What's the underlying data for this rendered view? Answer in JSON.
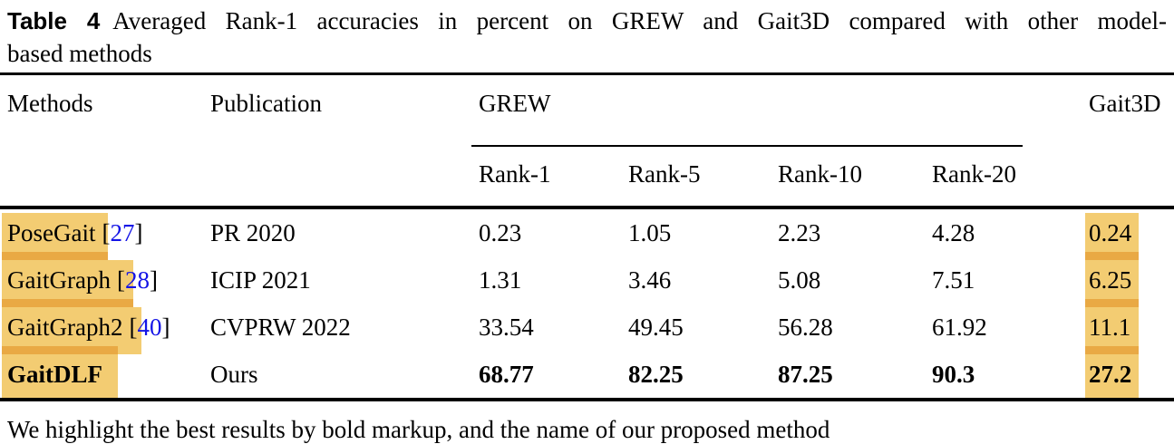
{
  "caption": {
    "label": "Table 4",
    "line1": "Averaged Rank-1 accuracies in percent on GREW and Gait3D compared with other model-",
    "line2": "based methods"
  },
  "table": {
    "headers": {
      "methods": "Methods",
      "publication": "Publication",
      "grew": "GREW",
      "gait3d": "Gait3D",
      "subcols": [
        "Rank-1",
        "Rank-5",
        "Rank-10",
        "Rank-20"
      ]
    },
    "rows": [
      {
        "method": "PoseGait",
        "cite_open": "[",
        "cite_num": "27",
        "cite_close": "]",
        "publication": "PR 2020",
        "rank1": "0.23",
        "rank5": "1.05",
        "rank10": "2.23",
        "rank20": "4.28",
        "gait3d": "0.24"
      },
      {
        "method": "GaitGraph",
        "cite_open": "[",
        "cite_num": "28",
        "cite_close": "]",
        "publication": "ICIP 2021",
        "rank1": "1.31",
        "rank5": "3.46",
        "rank10": "5.08",
        "rank20": "7.51",
        "gait3d": "6.25"
      },
      {
        "method": "GaitGraph2",
        "cite_open": "[",
        "cite_num": "40",
        "cite_close": "]",
        "publication": "CVPRW 2022",
        "rank1": "33.54",
        "rank5": "49.45",
        "rank10": "56.28",
        "rank20": "61.92",
        "gait3d": "11.1"
      },
      {
        "method": "GaitDLF",
        "publication": "Ours",
        "rank1": "68.77",
        "rank5": "82.25",
        "rank10": "87.25",
        "rank20": "90.3",
        "gait3d": "27.2"
      }
    ]
  },
  "footnote": "We highlight the best results by bold markup, and the name of our proposed method",
  "colors": {
    "highlight_light": "#F3CC72",
    "highlight_band": "#E9A944",
    "citation_blue": "#1414E6",
    "rule_black": "#000000"
  }
}
